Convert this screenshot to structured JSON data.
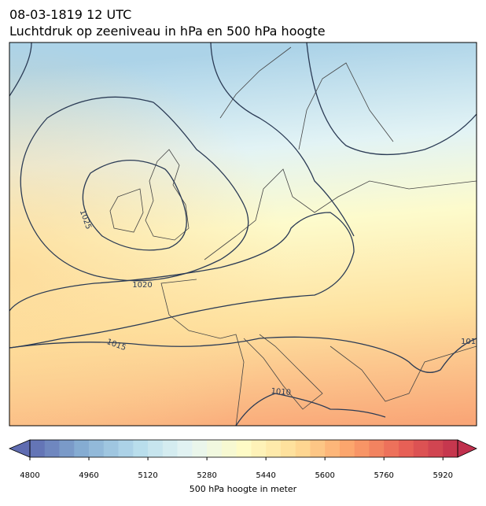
{
  "header": {
    "date": "08-03-1819 12 UTC",
    "title": "Luchtdruk op zeeniveau in hPa en 500 hPa hoogte"
  },
  "map": {
    "isobar_labels": [
      "1025",
      "1020",
      "1015",
      "1010",
      "101"
    ]
  },
  "colorbar": {
    "label": "500 hPa hoogte in meter",
    "range": [
      4800,
      5960
    ],
    "step": 40,
    "ticks": [
      4800,
      4960,
      5120,
      5280,
      5440,
      5600,
      5760,
      5920
    ],
    "colors": [
      "#5f6cb1",
      "#86aed3",
      "#b6dcec",
      "#e6f5f3",
      "#fefbc6",
      "#fedc95",
      "#fca26a",
      "#e86256",
      "#c0304d"
    ]
  }
}
